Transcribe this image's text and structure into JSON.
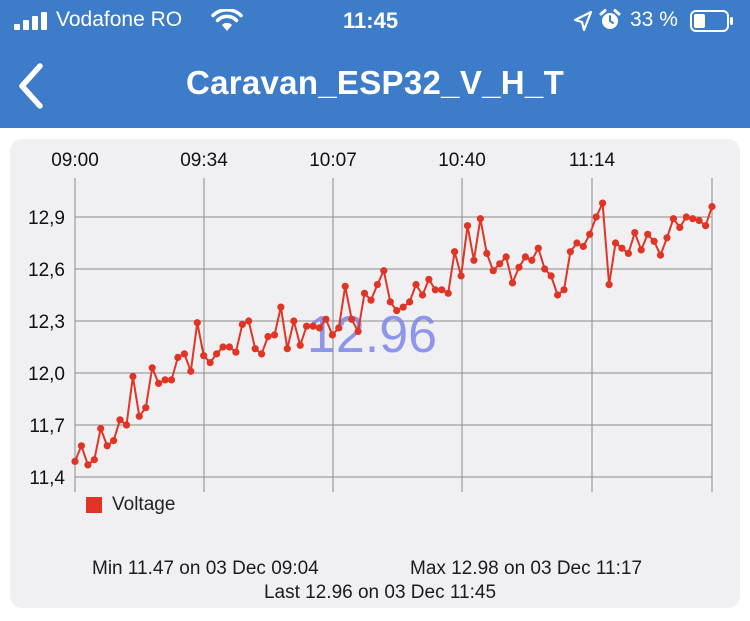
{
  "status_bar": {
    "carrier": "Vodafone RO",
    "time": "11:45",
    "battery_percent": "33 %",
    "icons": [
      "signal-icon",
      "wifi-icon",
      "location-arrow-icon",
      "alarm-icon",
      "battery-icon"
    ]
  },
  "nav": {
    "title": "Caravan_ESP32_V_H_T",
    "back_icon": "chevron-left-icon"
  },
  "colors": {
    "header_bg": "#3d7cc9",
    "series": "#e03525",
    "current_value": "#7b86e6",
    "card_bg": "#f0f0f3"
  },
  "chart_data": {
    "type": "line",
    "current_value": "12.96",
    "x_tick_labels": [
      "09:00",
      "09:34",
      "10:07",
      "10:40",
      "11:14"
    ],
    "y_tick_labels": [
      "12,9",
      "12,6",
      "12,3",
      "12,0",
      "11,7",
      "11,4"
    ],
    "y_ticks": [
      12.9,
      12.6,
      12.3,
      12.0,
      11.7,
      11.4
    ],
    "ylim": [
      11.4,
      13.1
    ],
    "grid": true,
    "legend_position": "bottom-left",
    "series": [
      {
        "name": "Voltage",
        "values": [
          11.49,
          11.58,
          11.47,
          11.5,
          11.68,
          11.58,
          11.61,
          11.73,
          11.7,
          11.98,
          11.75,
          11.8,
          12.03,
          11.94,
          11.96,
          11.96,
          12.09,
          12.11,
          12.01,
          12.29,
          12.1,
          12.06,
          12.11,
          12.15,
          12.15,
          12.12,
          12.28,
          12.3,
          12.14,
          12.11,
          12.21,
          12.22,
          12.38,
          12.14,
          12.3,
          12.16,
          12.27,
          12.27,
          12.26,
          12.31,
          12.22,
          12.26,
          12.5,
          12.31,
          12.24,
          12.46,
          12.42,
          12.51,
          12.59,
          12.41,
          12.36,
          12.38,
          12.41,
          12.51,
          12.45,
          12.54,
          12.48,
          12.48,
          12.46,
          12.7,
          12.56,
          12.85,
          12.65,
          12.89,
          12.69,
          12.59,
          12.63,
          12.67,
          12.52,
          12.61,
          12.67,
          12.65,
          12.72,
          12.6,
          12.56,
          12.45,
          12.48,
          12.7,
          12.75,
          12.73,
          12.8,
          12.9,
          12.98,
          12.51,
          12.75,
          12.72,
          12.69,
          12.81,
          12.71,
          12.8,
          12.76,
          12.68,
          12.78,
          12.89,
          12.84,
          12.9,
          12.89,
          12.88,
          12.85,
          12.96
        ]
      }
    ]
  },
  "legend": {
    "label": "Voltage"
  },
  "stats": {
    "min": "Min 11.47 on 03 Dec 09:04",
    "max": "Max 12.98 on 03 Dec 11:17",
    "last": "Last 12.96 on 03 Dec 11:45"
  }
}
